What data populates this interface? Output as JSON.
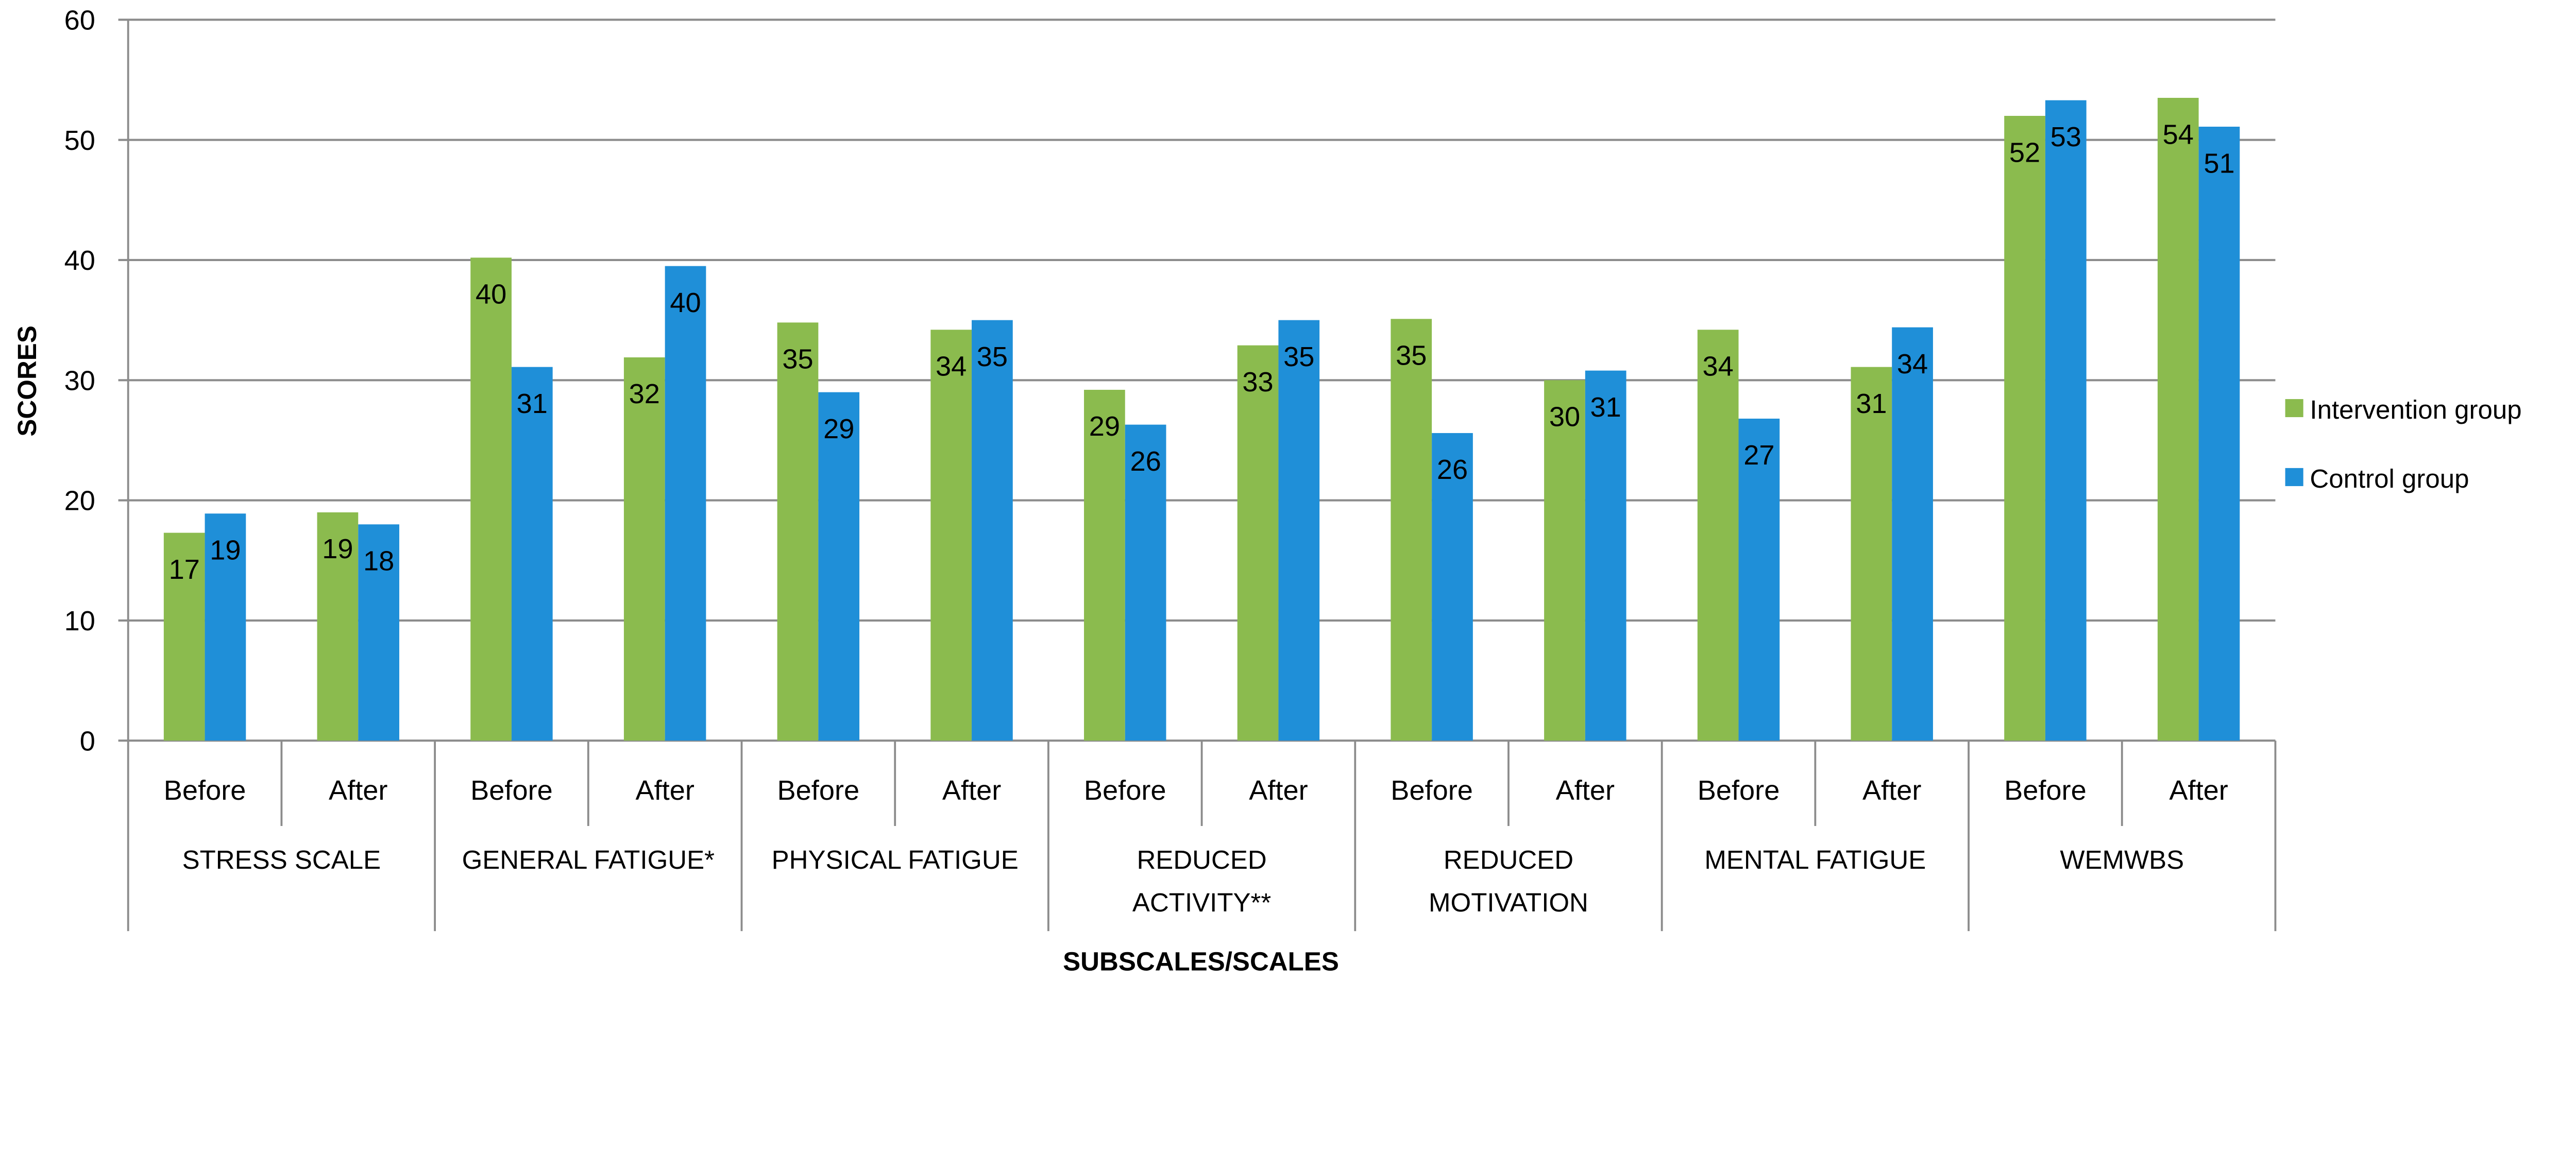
{
  "chart_data": {
    "type": "bar",
    "title": "",
    "xlabel": "SUBSCALES/SCALES",
    "ylabel": "SCORES",
    "ylim": [
      0,
      60
    ],
    "yticks": [
      0,
      10,
      20,
      30,
      40,
      50,
      60
    ],
    "grid": true,
    "legend_placement": "right",
    "groups": [
      {
        "label": [
          "STRESS SCALE"
        ],
        "subs": [
          "Before",
          "After"
        ]
      },
      {
        "label": [
          "GENERAL FATIGUE*"
        ],
        "subs": [
          "Before",
          "After"
        ]
      },
      {
        "label": [
          "PHYSICAL FATIGUE"
        ],
        "subs": [
          "Before",
          "After"
        ]
      },
      {
        "label": [
          "REDUCED",
          "ACTIVITY**"
        ],
        "subs": [
          "Before",
          "After"
        ]
      },
      {
        "label": [
          "REDUCED",
          "MOTIVATION"
        ],
        "subs": [
          "Before",
          "After"
        ]
      },
      {
        "label": [
          "MENTAL FATIGUE"
        ],
        "subs": [
          "Before",
          "After"
        ]
      },
      {
        "label": [
          "WEMWBS"
        ],
        "subs": [
          "Before",
          "After"
        ]
      }
    ],
    "series": [
      {
        "name": "Intervention group",
        "color": "#8BBB4E",
        "values": [
          17.3,
          19.0,
          40.2,
          31.9,
          34.8,
          34.2,
          29.2,
          32.9,
          35.1,
          30.0,
          34.2,
          31.1,
          52.0,
          53.5
        ],
        "labels": [
          "17",
          "19",
          "40",
          "32",
          "35",
          "34",
          "29",
          "33",
          "35",
          "30",
          "34",
          "31",
          "52",
          "54"
        ]
      },
      {
        "name": "Control group",
        "color": "#1F8FD8",
        "values": [
          18.9,
          18.0,
          31.1,
          39.5,
          29.0,
          35.0,
          26.3,
          35.0,
          25.6,
          30.8,
          26.8,
          34.4,
          53.3,
          51.1
        ],
        "labels": [
          "19",
          "18",
          "31",
          "40",
          "29",
          "35",
          "26",
          "35",
          "26",
          "31",
          "27",
          "34",
          "53",
          "51"
        ]
      }
    ]
  }
}
